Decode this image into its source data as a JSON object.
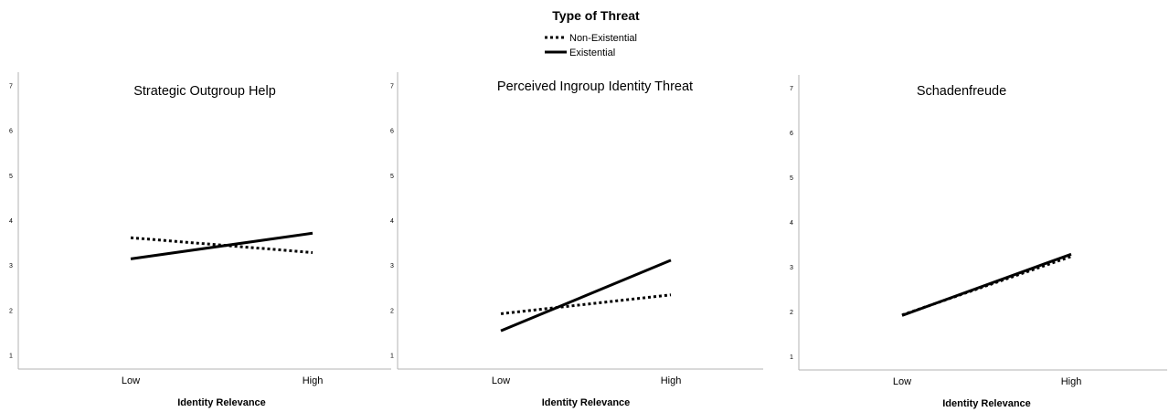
{
  "legend": {
    "title": "Type of Threat",
    "entries": [
      {
        "label": "Non-Existential",
        "style": "dotted"
      },
      {
        "label": "Existential",
        "style": "solid"
      }
    ]
  },
  "colors": {
    "line": "#000000",
    "axis": "#b3b3b3"
  },
  "chart_data": [
    {
      "type": "line",
      "title": "Strategic Outgroup Help",
      "xlabel": "Identity Relevance",
      "ylabel": "",
      "categories": [
        "Low",
        "High"
      ],
      "yticks": [
        "1",
        "2",
        "3",
        "4",
        "5",
        "6",
        "7"
      ],
      "ylim": [
        0.7,
        7.3
      ],
      "grid": false,
      "series": [
        {
          "name": "Non-Existential",
          "values": [
            3.62,
            3.29
          ]
        },
        {
          "name": "Existential",
          "values": [
            3.15,
            3.72
          ]
        }
      ]
    },
    {
      "type": "line",
      "title": "Perceived Ingroup Identity Threat",
      "xlabel": "Identity Relevance",
      "ylabel": "",
      "categories": [
        "Low",
        "High"
      ],
      "yticks": [
        "1",
        "2",
        "3",
        "4",
        "5",
        "6",
        "7"
      ],
      "ylim": [
        0.7,
        7.3
      ],
      "grid": false,
      "series": [
        {
          "name": "Non-Existential",
          "values": [
            1.93,
            2.35
          ]
        },
        {
          "name": "Existential",
          "values": [
            1.55,
            3.12
          ]
        }
      ]
    },
    {
      "type": "line",
      "title": "Schadenfreude",
      "xlabel": "Identity Relevance",
      "ylabel": "",
      "categories": [
        "Low",
        "High"
      ],
      "yticks": [
        "1",
        "2",
        "3",
        "4",
        "5",
        "6",
        "7"
      ],
      "ylim": [
        0.7,
        7.3
      ],
      "grid": false,
      "series": [
        {
          "name": "Non-Existential",
          "values": [
            1.93,
            3.24
          ]
        },
        {
          "name": "Existential",
          "values": [
            1.92,
            3.29
          ]
        }
      ]
    }
  ]
}
